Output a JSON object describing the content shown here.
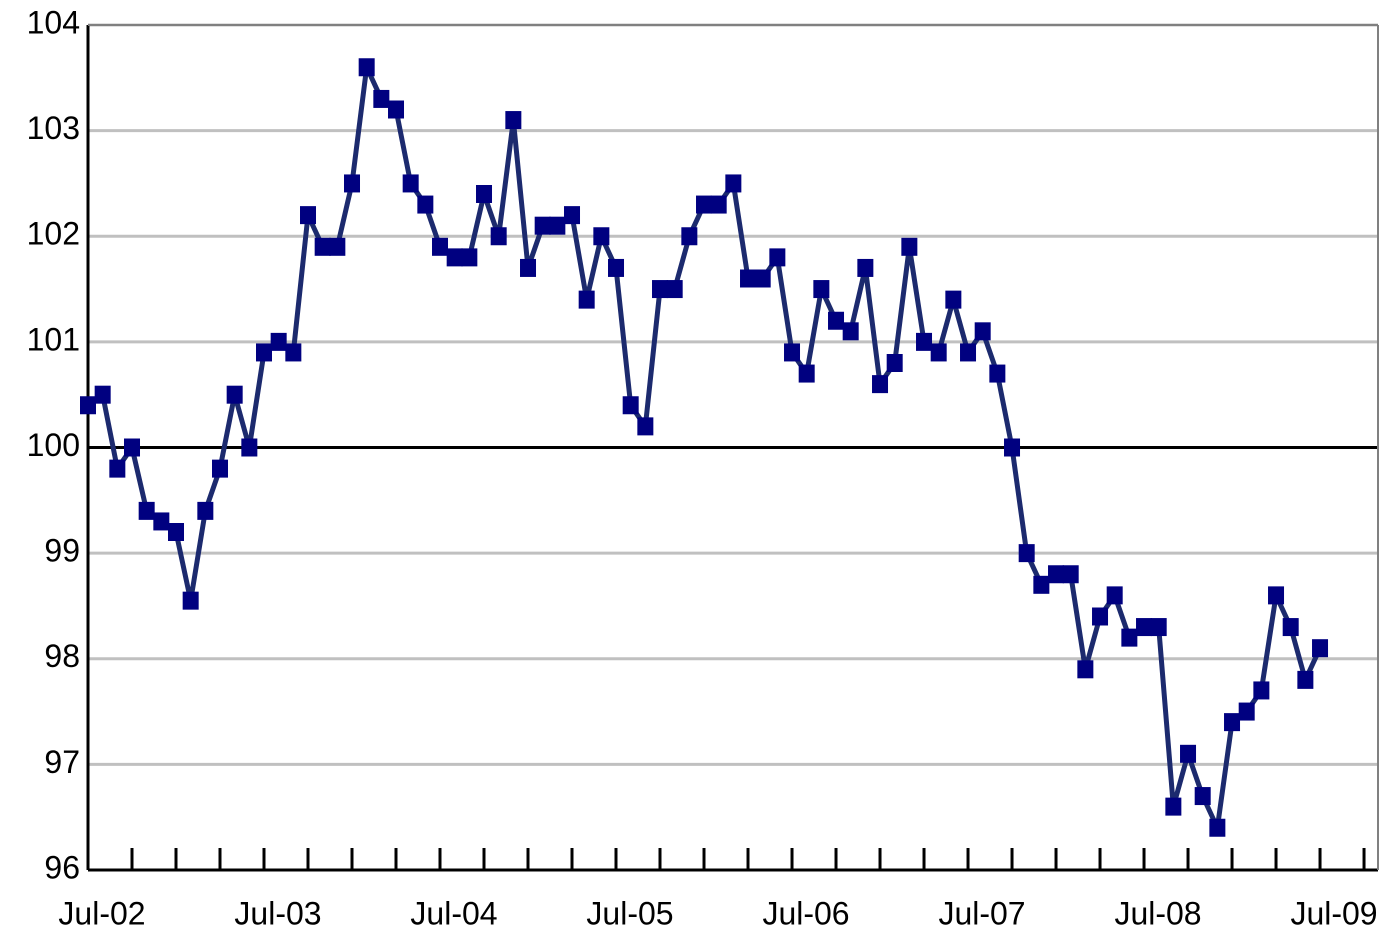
{
  "chart_data": {
    "type": "line",
    "categories": [
      "Jul-02",
      null,
      null,
      null,
      null,
      null,
      null,
      null,
      null,
      null,
      null,
      null,
      "Jul-03",
      null,
      null,
      null,
      null,
      null,
      null,
      null,
      null,
      null,
      null,
      null,
      "Jul-04",
      null,
      null,
      null,
      null,
      null,
      null,
      null,
      null,
      null,
      null,
      null,
      "Jul-05",
      null,
      null,
      null,
      null,
      null,
      null,
      null,
      null,
      null,
      null,
      null,
      "Jul-06",
      null,
      null,
      null,
      null,
      null,
      null,
      null,
      null,
      null,
      null,
      null,
      "Jul-07",
      null,
      null,
      null,
      null,
      null,
      null,
      null,
      null,
      null,
      null,
      null,
      "Jul-08",
      null,
      null,
      null,
      null,
      null,
      null,
      null,
      null,
      null,
      null,
      null,
      "Jul-09"
    ],
    "values": [
      100.4,
      100.5,
      99.8,
      100.0,
      99.4,
      99.3,
      99.2,
      98.55,
      99.4,
      99.8,
      100.5,
      100.0,
      100.9,
      101.0,
      100.9,
      102.2,
      101.9,
      101.9,
      102.5,
      103.6,
      103.3,
      103.2,
      102.5,
      102.3,
      101.9,
      101.8,
      101.8,
      102.4,
      102.0,
      103.1,
      101.7,
      102.1,
      102.1,
      102.2,
      101.4,
      102.0,
      101.7,
      100.4,
      100.2,
      101.5,
      101.5,
      102.0,
      102.3,
      102.3,
      102.5,
      101.6,
      101.6,
      101.8,
      100.9,
      100.7,
      101.5,
      101.2,
      101.1,
      101.7,
      100.6,
      100.8,
      101.9,
      101.0,
      100.9,
      101.4,
      100.9,
      101.1,
      100.7,
      100.0,
      99.0,
      98.7,
      98.8,
      98.8,
      97.9,
      98.4,
      98.6,
      98.2,
      98.3,
      98.3,
      96.6,
      97.1,
      96.7,
      96.4,
      97.4,
      97.5,
      97.7,
      98.6,
      98.3,
      97.8,
      98.1
    ],
    "color": "#1c2a6e",
    "marker_color": "#000080",
    "ylim": [
      96,
      104
    ],
    "yticks": [
      96,
      97,
      98,
      99,
      100,
      101,
      102,
      103,
      104
    ],
    "grid": true,
    "baseline": 100
  }
}
